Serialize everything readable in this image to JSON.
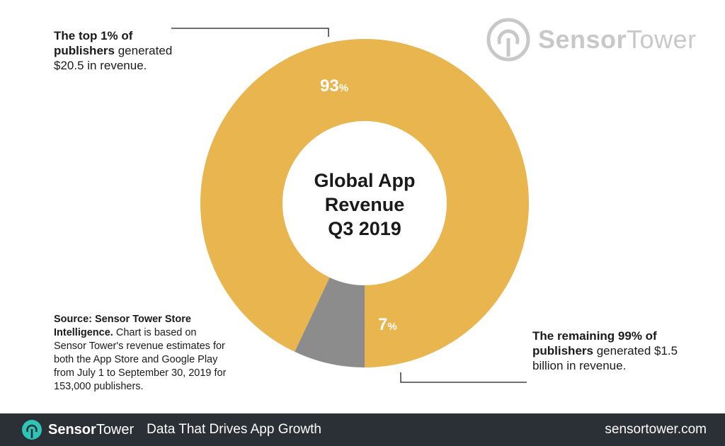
{
  "chart_data": {
    "type": "pie",
    "title": "Global App Revenue Q3 2019",
    "title_lines": [
      "Global App",
      "Revenue",
      "Q3 2019"
    ],
    "slices": [
      {
        "label": "93",
        "unit": "%",
        "value": 93,
        "color": "#E8B54F"
      },
      {
        "label": "7",
        "unit": "%",
        "value": 7,
        "color": "#8C8C8C"
      }
    ],
    "donut": true
  },
  "annotations": {
    "top": {
      "bold": "The top 1% of publishers",
      "text": "generated $20.5 in revenue."
    },
    "bottom": {
      "bold": "The remaining 99% of publishers",
      "text": "generated $1.5 billion in revenue."
    }
  },
  "source": {
    "bold": "Source: Sensor Tower Store Intelligence.",
    "text": "Chart is based on Sensor Tower's revenue estimates for both the App Store and Google Play from July 1 to September 30, 2019 for 153,000 publishers."
  },
  "watermark": {
    "brand_bold": "Sensor",
    "brand_regular": "Tower"
  },
  "footer": {
    "brand_bold": "Sensor",
    "brand_regular": "Tower",
    "tagline": "Data That Drives App Growth",
    "url": "sensortower.com"
  },
  "colors": {
    "orange": "#E8B54F",
    "gray": "#8C8C8C",
    "footer_bg": "#2B2F36",
    "accent": "#2EC4B6"
  }
}
